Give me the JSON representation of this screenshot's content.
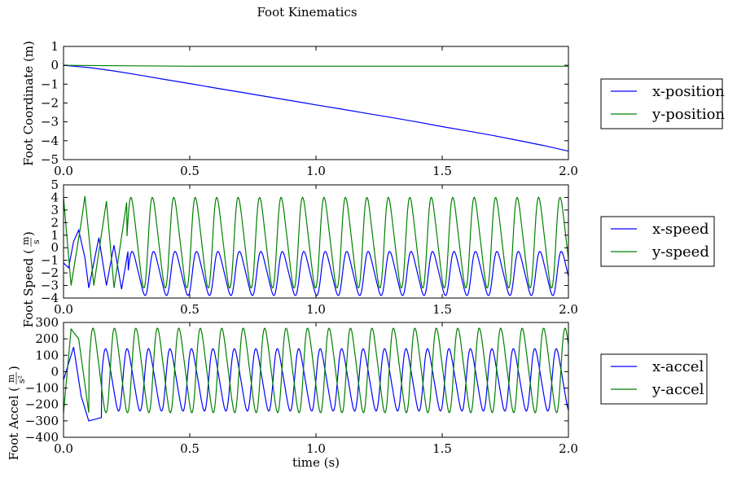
{
  "figure": {
    "suptitle": "Foot Kinematics",
    "background": "#ffffff"
  },
  "colors": {
    "blue": "#0000ff",
    "green": "#008000"
  },
  "chart_data": [
    {
      "type": "line",
      "id": "position",
      "ylabel": "Foot Coordinate (m)",
      "xlabel": "",
      "xlim": [
        0.0,
        2.0
      ],
      "ylim": [
        -5,
        1
      ],
      "xticks": [
        "0.0",
        "0.5",
        "1.0",
        "1.5",
        "2.0"
      ],
      "yticks": [
        "1",
        "0",
        "−1",
        "−2",
        "−3",
        "−4",
        "−5"
      ],
      "grid": false,
      "legend_position": "right-outside",
      "series": [
        {
          "name": "x-position",
          "color": "#0000ff",
          "x": [
            0.0,
            0.1,
            0.2,
            0.3,
            0.4,
            0.5,
            0.6,
            0.7,
            0.8,
            0.9,
            1.0,
            1.1,
            1.2,
            1.3,
            1.4,
            1.5,
            1.6,
            1.7,
            1.8,
            1.9,
            2.0
          ],
          "y": [
            0.0,
            -0.12,
            -0.3,
            -0.52,
            -0.75,
            -0.97,
            -1.2,
            -1.42,
            -1.65,
            -1.87,
            -2.1,
            -2.32,
            -2.55,
            -2.77,
            -3.0,
            -3.25,
            -3.48,
            -3.72,
            -3.98,
            -4.25,
            -4.55
          ]
        },
        {
          "name": "y-position",
          "color": "#008000",
          "x": [
            0.0,
            0.5,
            1.0,
            1.5,
            2.0
          ],
          "y": [
            0.0,
            -0.05,
            -0.05,
            -0.05,
            -0.05
          ],
          "oscillation": {
            "period": 0.085,
            "amplitude": 0.06
          }
        }
      ]
    },
    {
      "type": "line",
      "id": "speed",
      "ylabel": "Foot Speed (m/s)",
      "ylabel_units": {
        "num": "m",
        "den": "s"
      },
      "xlabel": "",
      "xlim": [
        0.0,
        2.0
      ],
      "ylim": [
        -4,
        5
      ],
      "xticks": [
        "0.0",
        "0.5",
        "1.0",
        "1.5",
        "2.0"
      ],
      "yticks": [
        "5",
        "4",
        "3",
        "2",
        "1",
        "0",
        "−1",
        "−2",
        "−3",
        "−4"
      ],
      "grid": false,
      "legend_position": "right-outside",
      "series": [
        {
          "name": "x-speed",
          "color": "#0000ff",
          "x": [
            0.0,
            0.02,
            0.04,
            0.06,
            0.085,
            0.1,
            0.14,
            0.17,
            0.2,
            0.23,
            0.255
          ],
          "y": [
            -1.2,
            -1.6,
            0.5,
            1.4,
            -0.8,
            -3.2,
            0.8,
            -3.0,
            0.2,
            -3.3,
            -0.3
          ],
          "oscillation": {
            "period": 0.085,
            "max": -0.3,
            "min": -3.8
          }
        },
        {
          "name": "y-speed",
          "color": "#008000",
          "x": [
            0.0,
            0.03,
            0.07,
            0.085,
            0.12,
            0.17,
            0.2,
            0.25
          ],
          "y": [
            4.0,
            -3.0,
            2.0,
            4.1,
            -3.0,
            3.7,
            -3.2,
            3.6
          ],
          "oscillation": {
            "period": 0.085,
            "max": 4.0,
            "min": -3.2
          }
        }
      ]
    },
    {
      "type": "line",
      "id": "accel",
      "ylabel": "Foot Accel (m/s²)",
      "ylabel_units": {
        "num": "m",
        "den": "s²"
      },
      "xlabel": "time (s)",
      "xlim": [
        0.0,
        2.0
      ],
      "ylim": [
        -400,
        300
      ],
      "xticks": [
        "0.0",
        "0.5",
        "1.0",
        "1.5",
        "2.0"
      ],
      "yticks": [
        "300",
        "200",
        "100",
        "0",
        "−100",
        "−200",
        "−300",
        "−400"
      ],
      "grid": false,
      "legend_position": "right-outside",
      "series": [
        {
          "name": "x-accel",
          "color": "#0000ff",
          "x": [
            0.0,
            0.04,
            0.07,
            0.1,
            0.15
          ],
          "y": [
            -50,
            150,
            -150,
            -300,
            -280
          ],
          "oscillation": {
            "period": 0.085,
            "max": 140,
            "min": -240
          }
        },
        {
          "name": "y-accel",
          "color": "#008000",
          "x": [
            0.0,
            0.03,
            0.06,
            0.1
          ],
          "y": [
            -250,
            260,
            200,
            -250
          ],
          "oscillation": {
            "period": 0.085,
            "max": 265,
            "min": -250
          }
        }
      ]
    }
  ]
}
